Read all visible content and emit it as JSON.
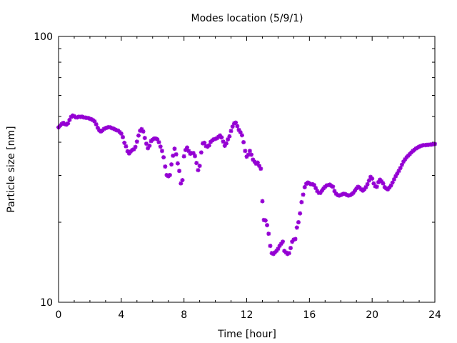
{
  "chart_data": {
    "type": "scatter",
    "title": "Modes location (5/9/1)",
    "xlabel": "Time [hour]",
    "ylabel": "Particle size [nm]",
    "xlim": [
      0,
      24
    ],
    "ylim": [
      10,
      100
    ],
    "yscale": "log",
    "grid": false,
    "x_ticks": [
      0,
      4,
      8,
      12,
      16,
      20,
      24
    ],
    "x_tick_labels": [
      "0",
      "4",
      "8",
      "12",
      "16",
      "20",
      "24"
    ],
    "y_ticks": [
      10,
      100
    ],
    "y_tick_labels": [
      "10",
      "100"
    ],
    "marker": "star",
    "colors": {
      "points": "#9400d3",
      "axes": "#000000"
    },
    "series": [
      {
        "points": [
          [
            0.0,
            45.5
          ],
          [
            0.1,
            46.2
          ],
          [
            0.2,
            46.8
          ],
          [
            0.3,
            47.3
          ],
          [
            0.4,
            46.8
          ],
          [
            0.5,
            46.6
          ],
          [
            0.6,
            47.1
          ],
          [
            0.7,
            48.5
          ],
          [
            0.8,
            49.8
          ],
          [
            0.9,
            50.4
          ],
          [
            1.0,
            50.1
          ],
          [
            1.1,
            49.6
          ],
          [
            1.2,
            49.6
          ],
          [
            1.3,
            49.9
          ],
          [
            1.4,
            49.8
          ],
          [
            1.5,
            49.9
          ],
          [
            1.6,
            49.6
          ],
          [
            1.7,
            49.5
          ],
          [
            1.8,
            49.4
          ],
          [
            1.9,
            49.3
          ],
          [
            2.0,
            49.0
          ],
          [
            2.1,
            48.8
          ],
          [
            2.2,
            48.4
          ],
          [
            2.3,
            47.9
          ],
          [
            2.4,
            46.7
          ],
          [
            2.5,
            45.3
          ],
          [
            2.6,
            44.3
          ],
          [
            2.7,
            43.9
          ],
          [
            2.8,
            44.3
          ],
          [
            2.9,
            44.9
          ],
          [
            3.0,
            45.2
          ],
          [
            3.1,
            45.4
          ],
          [
            3.2,
            45.6
          ],
          [
            3.3,
            45.5
          ],
          [
            3.4,
            45.2
          ],
          [
            3.5,
            45.0
          ],
          [
            3.6,
            44.7
          ],
          [
            3.7,
            44.4
          ],
          [
            3.8,
            44.2
          ],
          [
            3.9,
            43.7
          ],
          [
            4.0,
            43.1
          ],
          [
            4.1,
            41.8
          ],
          [
            4.2,
            39.8
          ],
          [
            4.3,
            38.6
          ],
          [
            4.4,
            37.0
          ],
          [
            4.5,
            36.3
          ],
          [
            4.6,
            36.9
          ],
          [
            4.7,
            37.4
          ],
          [
            4.8,
            37.6
          ],
          [
            4.9,
            38.4
          ],
          [
            5.0,
            40.2
          ],
          [
            5.1,
            42.4
          ],
          [
            5.2,
            44.2
          ],
          [
            5.3,
            44.8
          ],
          [
            5.4,
            43.9
          ],
          [
            5.5,
            41.5
          ],
          [
            5.6,
            39.5
          ],
          [
            5.7,
            38.0
          ],
          [
            5.8,
            38.8
          ],
          [
            5.9,
            40.4
          ],
          [
            6.0,
            40.9
          ],
          [
            6.1,
            41.3
          ],
          [
            6.2,
            41.3
          ],
          [
            6.3,
            41.0
          ],
          [
            6.4,
            40.0
          ],
          [
            6.5,
            38.5
          ],
          [
            6.6,
            37.1
          ],
          [
            6.7,
            35.1
          ],
          [
            6.8,
            32.4
          ],
          [
            6.9,
            30.1
          ],
          [
            7.0,
            29.8
          ],
          [
            7.1,
            30.1
          ],
          [
            7.2,
            33.0
          ],
          [
            7.3,
            35.6
          ],
          [
            7.4,
            37.8
          ],
          [
            7.5,
            36.0
          ],
          [
            7.6,
            33.3
          ],
          [
            7.7,
            31.2
          ],
          [
            7.8,
            28.0
          ],
          [
            7.9,
            28.8
          ],
          [
            8.0,
            35.4
          ],
          [
            8.1,
            37.4
          ],
          [
            8.2,
            38.2
          ],
          [
            8.3,
            37.1
          ],
          [
            8.4,
            36.2
          ],
          [
            8.5,
            36.4
          ],
          [
            8.6,
            36.4
          ],
          [
            8.7,
            35.5
          ],
          [
            8.8,
            33.4
          ],
          [
            8.9,
            31.4
          ],
          [
            9.0,
            32.6
          ],
          [
            9.1,
            36.6
          ],
          [
            9.2,
            39.6
          ],
          [
            9.3,
            39.8
          ],
          [
            9.4,
            38.7
          ],
          [
            9.5,
            38.5
          ],
          [
            9.6,
            38.9
          ],
          [
            9.7,
            40.1
          ],
          [
            9.8,
            40.6
          ],
          [
            9.9,
            41.0
          ],
          [
            10.0,
            41.2
          ],
          [
            10.1,
            41.4
          ],
          [
            10.2,
            41.9
          ],
          [
            10.3,
            42.4
          ],
          [
            10.4,
            41.7
          ],
          [
            10.5,
            40.2
          ],
          [
            10.6,
            38.8
          ],
          [
            10.7,
            39.6
          ],
          [
            10.8,
            41.0
          ],
          [
            10.9,
            42.1
          ],
          [
            11.0,
            44.1
          ],
          [
            11.1,
            45.8
          ],
          [
            11.2,
            47.1
          ],
          [
            11.3,
            47.4
          ],
          [
            11.4,
            46.0
          ],
          [
            11.5,
            44.5
          ],
          [
            11.6,
            43.6
          ],
          [
            11.7,
            42.5
          ],
          [
            11.8,
            40.0
          ],
          [
            11.9,
            37.1
          ],
          [
            12.0,
            35.3
          ],
          [
            12.1,
            35.9
          ],
          [
            12.2,
            37.1
          ],
          [
            12.3,
            35.9
          ],
          [
            12.4,
            34.4
          ],
          [
            12.5,
            33.8
          ],
          [
            12.6,
            33.2
          ],
          [
            12.7,
            33.5
          ],
          [
            12.8,
            32.6
          ],
          [
            12.9,
            31.8
          ],
          [
            13.0,
            24.0
          ],
          [
            13.1,
            20.4
          ],
          [
            13.2,
            20.3
          ],
          [
            13.3,
            19.5
          ],
          [
            13.4,
            18.1
          ],
          [
            13.5,
            16.3
          ],
          [
            13.6,
            15.3
          ],
          [
            13.7,
            15.2
          ],
          [
            13.8,
            15.4
          ],
          [
            13.9,
            15.6
          ],
          [
            14.0,
            15.9
          ],
          [
            14.1,
            16.3
          ],
          [
            14.2,
            16.6
          ],
          [
            14.3,
            16.9
          ],
          [
            14.4,
            15.6
          ],
          [
            14.5,
            15.4
          ],
          [
            14.6,
            15.2
          ],
          [
            14.7,
            15.3
          ],
          [
            14.8,
            16.0
          ],
          [
            14.9,
            16.9
          ],
          [
            15.0,
            17.2
          ],
          [
            15.1,
            17.3
          ],
          [
            15.2,
            19.1
          ],
          [
            15.3,
            20.0
          ],
          [
            15.4,
            21.6
          ],
          [
            15.5,
            23.8
          ],
          [
            15.6,
            25.4
          ],
          [
            15.7,
            27.1
          ],
          [
            15.8,
            27.9
          ],
          [
            15.9,
            28.2
          ],
          [
            16.0,
            28.0
          ],
          [
            16.1,
            27.8
          ],
          [
            16.2,
            27.8
          ],
          [
            16.3,
            27.6
          ],
          [
            16.4,
            26.9
          ],
          [
            16.5,
            26.2
          ],
          [
            16.6,
            25.8
          ],
          [
            16.7,
            25.8
          ],
          [
            16.8,
            26.3
          ],
          [
            16.9,
            26.8
          ],
          [
            17.0,
            27.2
          ],
          [
            17.1,
            27.5
          ],
          [
            17.2,
            27.6
          ],
          [
            17.3,
            27.7
          ],
          [
            17.4,
            27.4
          ],
          [
            17.5,
            27.2
          ],
          [
            17.6,
            26.2
          ],
          [
            17.7,
            25.6
          ],
          [
            17.8,
            25.3
          ],
          [
            17.9,
            25.2
          ],
          [
            18.0,
            25.3
          ],
          [
            18.1,
            25.5
          ],
          [
            18.2,
            25.6
          ],
          [
            18.3,
            25.5
          ],
          [
            18.4,
            25.3
          ],
          [
            18.5,
            25.2
          ],
          [
            18.6,
            25.3
          ],
          [
            18.7,
            25.5
          ],
          [
            18.8,
            25.8
          ],
          [
            18.9,
            26.3
          ],
          [
            19.0,
            26.8
          ],
          [
            19.1,
            27.2
          ],
          [
            19.2,
            27.0
          ],
          [
            19.3,
            26.6
          ],
          [
            19.4,
            26.3
          ],
          [
            19.5,
            26.6
          ],
          [
            19.6,
            27.1
          ],
          [
            19.7,
            27.8
          ],
          [
            19.8,
            28.7
          ],
          [
            19.9,
            29.6
          ],
          [
            20.0,
            29.2
          ],
          [
            20.1,
            28.0
          ],
          [
            20.2,
            27.3
          ],
          [
            20.3,
            27.2
          ],
          [
            20.4,
            28.3
          ],
          [
            20.5,
            28.9
          ],
          [
            20.6,
            28.5
          ],
          [
            20.7,
            28.0
          ],
          [
            20.8,
            27.1
          ],
          [
            20.9,
            26.8
          ],
          [
            21.0,
            26.6
          ],
          [
            21.1,
            27.0
          ],
          [
            21.2,
            27.5
          ],
          [
            21.3,
            28.2
          ],
          [
            21.4,
            29.0
          ],
          [
            21.5,
            29.8
          ],
          [
            21.6,
            30.5
          ],
          [
            21.7,
            31.2
          ],
          [
            21.8,
            32.0
          ],
          [
            21.9,
            32.9
          ],
          [
            22.0,
            33.8
          ],
          [
            22.1,
            34.5
          ],
          [
            22.2,
            35.1
          ],
          [
            22.3,
            35.6
          ],
          [
            22.4,
            36.1
          ],
          [
            22.5,
            36.6
          ],
          [
            22.6,
            37.1
          ],
          [
            22.7,
            37.5
          ],
          [
            22.8,
            37.9
          ],
          [
            22.9,
            38.2
          ],
          [
            23.0,
            38.5
          ],
          [
            23.1,
            38.7
          ],
          [
            23.2,
            38.9
          ],
          [
            23.3,
            39.0
          ],
          [
            23.4,
            39.0
          ],
          [
            23.5,
            39.1
          ],
          [
            23.6,
            39.1
          ],
          [
            23.7,
            39.2
          ],
          [
            23.8,
            39.2
          ],
          [
            23.9,
            39.3
          ],
          [
            24.0,
            39.4
          ]
        ]
      }
    ]
  }
}
